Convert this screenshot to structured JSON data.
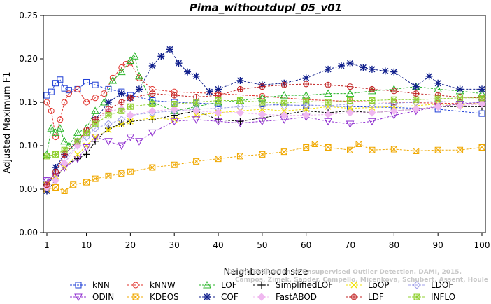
{
  "chart_data": {
    "type": "line",
    "title": "Pima_withoutdupl_05_v01",
    "xlabel": "Neighborhood size",
    "ylabel": "Adjusted Maximum F1",
    "xlim": [
      1,
      100
    ],
    "ylim": [
      0,
      0.25
    ],
    "xticks": [
      "1",
      "10",
      "20",
      "30",
      "40",
      "50",
      "60",
      "70",
      "80",
      "90",
      "100"
    ],
    "yticks": [
      "0.00",
      "0.05",
      "0.10",
      "0.15",
      "0.20",
      "0.25"
    ],
    "watermark": {
      "line1": "Campos, Zimek, Sander, Campello, Micenkova, Schubert, Assent, Houle",
      "line2": "On the Evaluation of Unsupervised Outlier Detection. DAMI, 2015."
    },
    "series": [
      {
        "name": "kNN",
        "color": "#1f3fd6",
        "marker": "square",
        "x": [
          1,
          2,
          3,
          4,
          5,
          6,
          8,
          10,
          12,
          15,
          18,
          20,
          25,
          30,
          35,
          40,
          50,
          60,
          70,
          80,
          90,
          100
        ],
        "y": [
          0.158,
          0.162,
          0.172,
          0.176,
          0.166,
          0.164,
          0.165,
          0.173,
          0.17,
          0.165,
          0.162,
          0.158,
          0.152,
          0.15,
          0.149,
          0.148,
          0.148,
          0.146,
          0.145,
          0.144,
          0.142,
          0.137
        ]
      },
      {
        "name": "kNNW",
        "color": "#e0302a",
        "marker": "circle",
        "x": [
          1,
          2,
          3,
          4,
          5,
          6,
          8,
          10,
          12,
          14,
          16,
          18,
          19,
          20,
          22,
          25,
          30,
          40,
          50,
          60,
          70,
          80,
          90,
          100
        ],
        "y": [
          0.15,
          0.14,
          0.11,
          0.13,
          0.15,
          0.16,
          0.165,
          0.15,
          0.155,
          0.16,
          0.178,
          0.19,
          0.194,
          0.196,
          0.178,
          0.165,
          0.162,
          0.16,
          0.157,
          0.153,
          0.151,
          0.15,
          0.149,
          0.148
        ]
      },
      {
        "name": "LOF",
        "color": "#2ab52a",
        "marker": "triangle-up",
        "x": [
          1,
          2,
          3,
          4,
          5,
          6,
          8,
          10,
          12,
          14,
          16,
          18,
          20,
          21,
          22,
          25,
          30,
          35,
          40,
          45,
          50,
          55,
          60,
          65,
          70,
          75,
          80,
          85,
          90,
          95,
          100
        ],
        "y": [
          0.09,
          0.12,
          0.115,
          0.12,
          0.105,
          0.1,
          0.115,
          0.12,
          0.14,
          0.15,
          0.175,
          0.185,
          0.198,
          0.203,
          0.18,
          0.15,
          0.14,
          0.145,
          0.15,
          0.152,
          0.155,
          0.158,
          0.158,
          0.16,
          0.16,
          0.163,
          0.165,
          0.168,
          0.165,
          0.163,
          0.16
        ]
      },
      {
        "name": "SimplifiedLOF",
        "color": "#000000",
        "marker": "plus",
        "x": [
          1,
          3,
          5,
          8,
          10,
          12,
          15,
          18,
          20,
          25,
          30,
          35,
          40,
          45,
          50,
          55,
          60,
          65,
          70,
          75,
          80,
          85,
          90,
          95,
          100
        ],
        "y": [
          0.048,
          0.06,
          0.078,
          0.085,
          0.09,
          0.105,
          0.12,
          0.125,
          0.128,
          0.13,
          0.135,
          0.14,
          0.13,
          0.128,
          0.132,
          0.136,
          0.14,
          0.138,
          0.14,
          0.138,
          0.14,
          0.142,
          0.145,
          0.145,
          0.145
        ]
      },
      {
        "name": "LoOP",
        "color": "#f2e20a",
        "marker": "x",
        "x": [
          1,
          3,
          5,
          8,
          10,
          12,
          15,
          18,
          20,
          25,
          30,
          35,
          40,
          45,
          50,
          55,
          60,
          65,
          70,
          75,
          80,
          85,
          90,
          95,
          100
        ],
        "y": [
          0.055,
          0.065,
          0.075,
          0.09,
          0.1,
          0.11,
          0.118,
          0.125,
          0.128,
          0.132,
          0.13,
          0.135,
          0.138,
          0.14,
          0.142,
          0.14,
          0.142,
          0.145,
          0.143,
          0.144,
          0.145,
          0.146,
          0.148,
          0.147,
          0.15
        ]
      },
      {
        "name": "LDOF",
        "color": "#9f9fe8",
        "marker": "diamond",
        "x": [
          1,
          3,
          5,
          8,
          10,
          12,
          15,
          18,
          20,
          25,
          30,
          35,
          40,
          45,
          50,
          55,
          60,
          65,
          70,
          75,
          80,
          85,
          90,
          95,
          100
        ],
        "y": [
          0.06,
          0.07,
          0.085,
          0.1,
          0.11,
          0.12,
          0.125,
          0.13,
          0.135,
          0.138,
          0.14,
          0.142,
          0.143,
          0.145,
          0.146,
          0.146,
          0.147,
          0.146,
          0.148,
          0.148,
          0.149,
          0.15,
          0.151,
          0.15,
          0.15
        ]
      },
      {
        "name": "ODIN",
        "color": "#9030d0",
        "marker": "triangle-down",
        "x": [
          1,
          3,
          5,
          8,
          10,
          12,
          15,
          18,
          20,
          22,
          25,
          30,
          35,
          40,
          45,
          50,
          55,
          60,
          65,
          70,
          75,
          80,
          85,
          90,
          95,
          100
        ],
        "y": [
          0.06,
          0.065,
          0.075,
          0.085,
          0.098,
          0.11,
          0.105,
          0.1,
          0.11,
          0.105,
          0.115,
          0.128,
          0.13,
          0.128,
          0.126,
          0.128,
          0.13,
          0.133,
          0.128,
          0.125,
          0.128,
          0.135,
          0.14,
          0.145,
          0.148,
          0.15
        ]
      },
      {
        "name": "KDEOS",
        "color": "#f0a800",
        "marker": "square-x",
        "x": [
          1,
          3,
          5,
          7,
          10,
          12,
          15,
          18,
          20,
          25,
          30,
          35,
          40,
          45,
          50,
          55,
          60,
          62,
          65,
          70,
          72,
          75,
          80,
          85,
          90,
          95,
          100
        ],
        "y": [
          0.05,
          0.052,
          0.048,
          0.055,
          0.058,
          0.062,
          0.065,
          0.068,
          0.07,
          0.075,
          0.078,
          0.082,
          0.085,
          0.088,
          0.09,
          0.093,
          0.098,
          0.102,
          0.098,
          0.095,
          0.102,
          0.095,
          0.096,
          0.094,
          0.095,
          0.095,
          0.098
        ]
      },
      {
        "name": "COF",
        "color": "#101f8c",
        "marker": "asterisk",
        "x": [
          1,
          3,
          5,
          8,
          10,
          12,
          15,
          18,
          20,
          22,
          25,
          27,
          29,
          31,
          33,
          35,
          38,
          40,
          45,
          50,
          55,
          60,
          65,
          68,
          70,
          73,
          75,
          78,
          80,
          85,
          88,
          90,
          95,
          100
        ],
        "y": [
          0.048,
          0.075,
          0.09,
          0.105,
          0.115,
          0.13,
          0.15,
          0.16,
          0.155,
          0.165,
          0.192,
          0.203,
          0.211,
          0.195,
          0.185,
          0.18,
          0.162,
          0.165,
          0.175,
          0.17,
          0.172,
          0.178,
          0.188,
          0.192,
          0.195,
          0.19,
          0.188,
          0.186,
          0.185,
          0.168,
          0.18,
          0.172,
          0.165,
          0.165
        ]
      },
      {
        "name": "FastABOD",
        "color": "#f0b8f0",
        "marker": "diamond-filled",
        "x": [
          1,
          3,
          5,
          8,
          10,
          12,
          15,
          18,
          20,
          25,
          30,
          35,
          40,
          45,
          50,
          55,
          60,
          65,
          70,
          75,
          80,
          85,
          90,
          95,
          100
        ],
        "y": [
          0.052,
          0.06,
          0.08,
          0.1,
          0.115,
          0.128,
          0.14,
          0.142,
          0.135,
          0.14,
          0.142,
          0.14,
          0.138,
          0.138,
          0.136,
          0.135,
          0.135,
          0.136,
          0.138,
          0.138,
          0.14,
          0.142,
          0.145,
          0.146,
          0.148
        ]
      },
      {
        "name": "LDF",
        "color": "#c02020",
        "marker": "circle-plus",
        "x": [
          1,
          3,
          5,
          8,
          10,
          12,
          15,
          18,
          20,
          25,
          30,
          35,
          40,
          45,
          50,
          55,
          60,
          65,
          70,
          75,
          80,
          85,
          90,
          95,
          100
        ],
        "y": [
          0.055,
          0.07,
          0.09,
          0.105,
          0.118,
          0.13,
          0.142,
          0.15,
          0.155,
          0.16,
          0.158,
          0.156,
          0.158,
          0.165,
          0.168,
          0.17,
          0.171,
          0.17,
          0.168,
          0.165,
          0.163,
          0.16,
          0.158,
          0.156,
          0.155
        ]
      },
      {
        "name": "INFLO",
        "color": "#90d030",
        "marker": "square-star",
        "x": [
          1,
          3,
          5,
          8,
          10,
          12,
          15,
          18,
          20,
          25,
          30,
          35,
          40,
          45,
          50,
          55,
          60,
          65,
          70,
          75,
          80,
          85,
          90,
          95,
          100
        ],
        "y": [
          0.088,
          0.09,
          0.095,
          0.105,
          0.115,
          0.125,
          0.135,
          0.14,
          0.145,
          0.148,
          0.148,
          0.15,
          0.152,
          0.152,
          0.15,
          0.149,
          0.151,
          0.15,
          0.152,
          0.152,
          0.153,
          0.153,
          0.154,
          0.155,
          0.155
        ]
      }
    ],
    "legend_placement": "bottom",
    "legend_columns": 6
  }
}
